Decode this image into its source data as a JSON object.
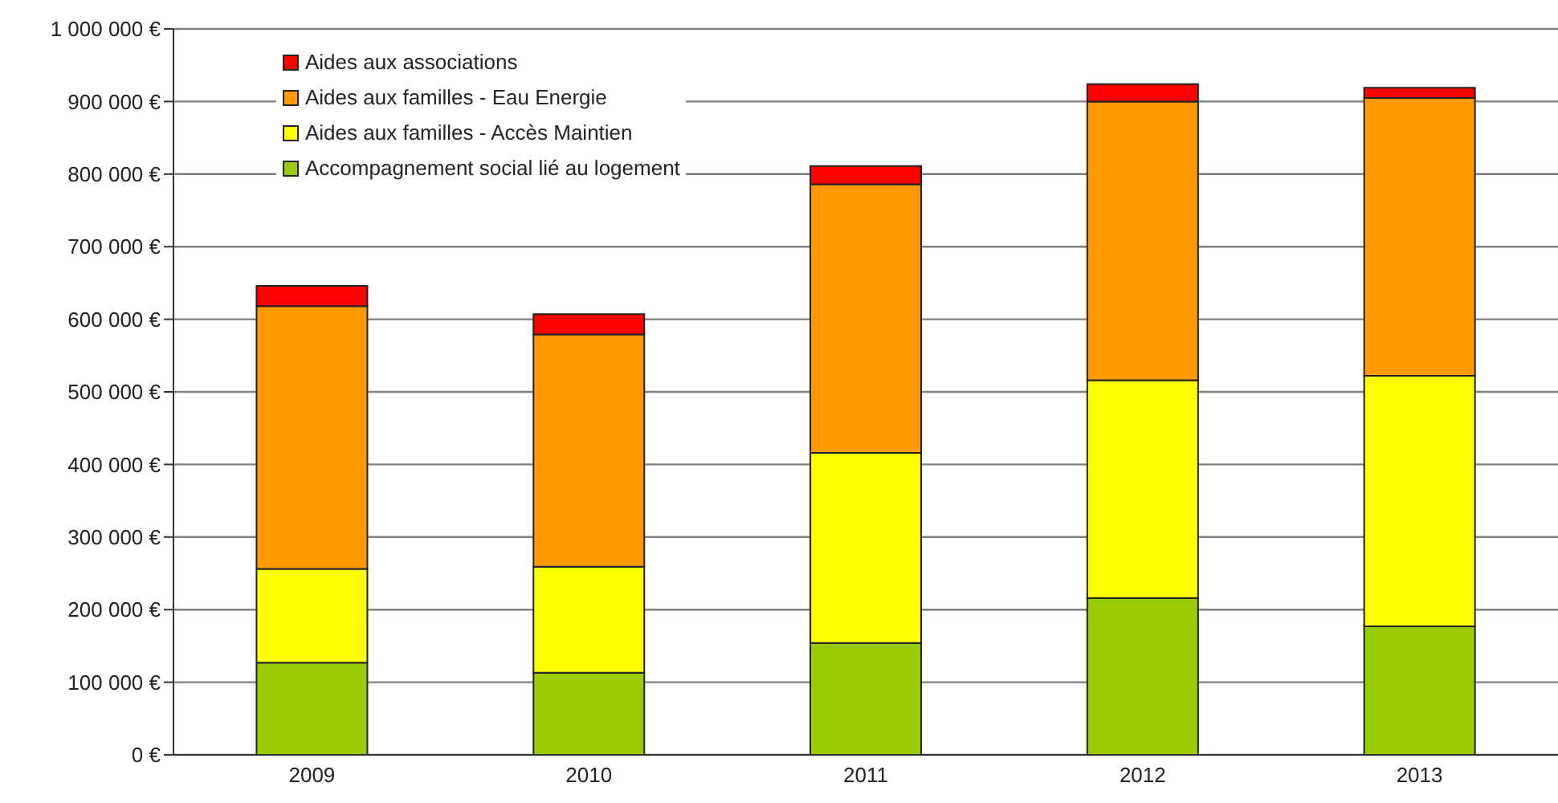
{
  "chart_data": {
    "type": "bar",
    "stacked": true,
    "categories": [
      "2009",
      "2010",
      "2011",
      "2012",
      "2013"
    ],
    "series": [
      {
        "name": "Accompagnement social lié au logement",
        "color": "#99cc00",
        "values": [
          127000,
          113000,
          154000,
          216000,
          177000
        ]
      },
      {
        "name": "Aides aux familles - Accès Maintien",
        "color": "#ffff00",
        "values": [
          129000,
          146000,
          262000,
          300000,
          345000
        ]
      },
      {
        "name": "Aides aux familles - Eau Energie",
        "color": "#ff9900",
        "values": [
          362000,
          320000,
          370000,
          384000,
          383000
        ]
      },
      {
        "name": "Aides aux associations",
        "color": "#ff0000",
        "values": [
          28000,
          28000,
          25000,
          24000,
          14000
        ]
      }
    ],
    "ylim": [
      0,
      1000000
    ],
    "yticks": [
      {
        "value": 0,
        "label": "0 €"
      },
      {
        "value": 100000,
        "label": "100 000 €"
      },
      {
        "value": 200000,
        "label": "200 000 €"
      },
      {
        "value": 300000,
        "label": "300 000 €"
      },
      {
        "value": 400000,
        "label": "400 000 €"
      },
      {
        "value": 500000,
        "label": "500 000 €"
      },
      {
        "value": 600000,
        "label": "600 000 €"
      },
      {
        "value": 700000,
        "label": "700 000 €"
      },
      {
        "value": 800000,
        "label": "800 000 €"
      },
      {
        "value": 900000,
        "label": "900 000 €"
      },
      {
        "value": 1000000,
        "label": "1 000 000 €"
      }
    ],
    "grid": "y",
    "legend": "top left"
  }
}
